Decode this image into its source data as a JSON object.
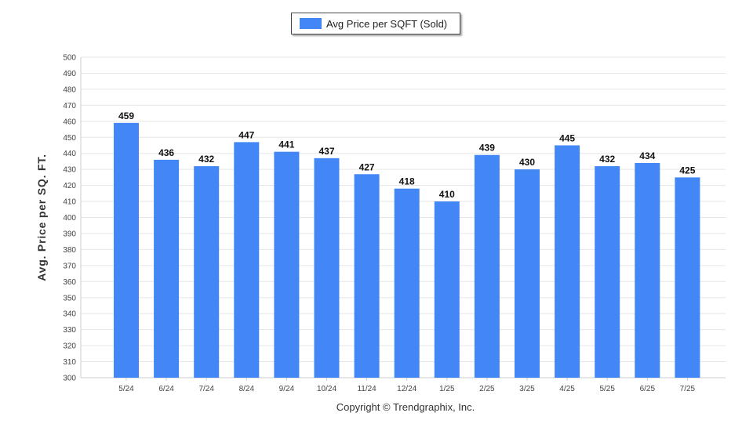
{
  "legend": {
    "label": "Avg Price per SQFT (Sold)",
    "color": "#4287f5"
  },
  "footer": {
    "copyright": "Copyright © Trendgraphix, Inc."
  },
  "chart_data": {
    "type": "bar",
    "ylabel": "Avg. Price per SQ. FT.",
    "ylim": [
      300,
      500
    ],
    "ytick_step": 10,
    "grid": true,
    "legend_position": "top-center",
    "categories": [
      "5/24",
      "6/24",
      "7/24",
      "8/24",
      "9/24",
      "10/24",
      "11/24",
      "12/24",
      "1/25",
      "2/25",
      "3/25",
      "4/25",
      "5/25",
      "6/25",
      "7/25"
    ],
    "series": [
      {
        "name": "Avg Price per SQFT (Sold)",
        "color": "#4287f5",
        "values": [
          459,
          436,
          432,
          447,
          441,
          437,
          427,
          418,
          410,
          439,
          430,
          445,
          432,
          434,
          425
        ]
      }
    ]
  }
}
